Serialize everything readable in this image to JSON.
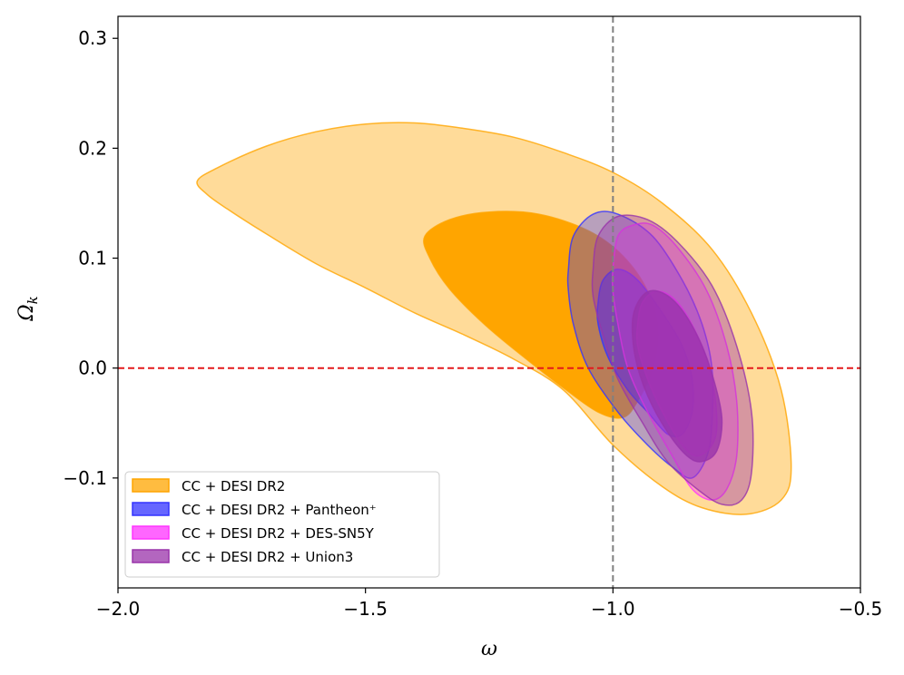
{
  "chart_data": {
    "type": "contour",
    "xlabel": "ω",
    "ylabel": "Ω",
    "ylabel_sub": "k",
    "xlim": [
      -2.0,
      -0.5
    ],
    "ylim": [
      -0.2,
      0.32
    ],
    "xticks": [
      {
        "value": -2.0,
        "label": "−2.0"
      },
      {
        "value": -1.5,
        "label": "−1.5"
      },
      {
        "value": -1.0,
        "label": "−1.0"
      },
      {
        "value": -0.5,
        "label": "−0.5"
      }
    ],
    "yticks": [
      {
        "value": 0.3,
        "label": "0.3"
      },
      {
        "value": 0.2,
        "label": "0.2"
      },
      {
        "value": 0.1,
        "label": "0.1"
      },
      {
        "value": 0.0,
        "label": "0.0"
      },
      {
        "value": -0.1,
        "label": "−0.1"
      }
    ],
    "reference_lines": [
      {
        "orientation": "vertical",
        "value": -1.0,
        "color": "#808080",
        "style": "dashed"
      },
      {
        "orientation": "horizontal",
        "value": 0.0,
        "color": "#e41a1c",
        "style": "dashed"
      }
    ],
    "series": [
      {
        "name": "CC + DESI DR2",
        "color": "#FFA500",
        "contours": [
          {
            "level": "2sigma",
            "opacity": 0.4,
            "points": [
              [
                -1.84,
                0.17
              ],
              [
                -1.8,
                0.182
              ],
              [
                -1.7,
                0.202
              ],
              [
                -1.6,
                0.215
              ],
              [
                -1.5,
                0.222
              ],
              [
                -1.4,
                0.223
              ],
              [
                -1.3,
                0.218
              ],
              [
                -1.2,
                0.21
              ],
              [
                -1.1,
                0.196
              ],
              [
                -1.0,
                0.178
              ],
              [
                -0.9,
                0.15
              ],
              [
                -0.8,
                0.108
              ],
              [
                -0.72,
                0.05
              ],
              [
                -0.66,
                -0.02
              ],
              [
                -0.64,
                -0.09
              ],
              [
                -0.66,
                -0.12
              ],
              [
                -0.73,
                -0.133
              ],
              [
                -0.82,
                -0.127
              ],
              [
                -0.9,
                -0.108
              ],
              [
                -1.0,
                -0.07
              ],
              [
                -1.1,
                -0.02
              ],
              [
                -1.2,
                0.008
              ],
              [
                -1.3,
                0.03
              ],
              [
                -1.4,
                0.05
              ],
              [
                -1.5,
                0.073
              ],
              [
                -1.6,
                0.095
              ],
              [
                -1.7,
                0.122
              ],
              [
                -1.78,
                0.145
              ],
              [
                -1.82,
                0.158
              ]
            ]
          },
          {
            "level": "1sigma",
            "opacity": 1.0,
            "points": [
              [
                -1.38,
                0.12
              ],
              [
                -1.33,
                0.135
              ],
              [
                -1.25,
                0.142
              ],
              [
                -1.15,
                0.14
              ],
              [
                -1.05,
                0.125
              ],
              [
                -0.98,
                0.102
              ],
              [
                -0.93,
                0.07
              ],
              [
                -0.91,
                0.035
              ],
              [
                -0.92,
                0.0
              ],
              [
                -0.95,
                -0.03
              ],
              [
                -0.98,
                -0.045
              ],
              [
                -1.03,
                -0.04
              ],
              [
                -1.1,
                -0.018
              ],
              [
                -1.18,
                0.01
              ],
              [
                -1.26,
                0.04
              ],
              [
                -1.33,
                0.072
              ],
              [
                -1.37,
                0.1
              ]
            ]
          }
        ]
      },
      {
        "name": "CC + DESI DR2 + Pantheon⁺",
        "color": "#3333ff",
        "contours": [
          {
            "level": "2sigma",
            "opacity": 0.35,
            "points": [
              [
                -1.09,
                0.09
              ],
              [
                -1.08,
                0.12
              ],
              [
                -1.04,
                0.14
              ],
              [
                -0.99,
                0.14
              ],
              [
                -0.92,
                0.12
              ],
              [
                -0.86,
                0.08
              ],
              [
                -0.82,
                0.04
              ],
              [
                -0.8,
                0.0
              ],
              [
                -0.8,
                -0.05
              ],
              [
                -0.81,
                -0.08
              ],
              [
                -0.84,
                -0.1
              ],
              [
                -0.88,
                -0.09
              ],
              [
                -0.93,
                -0.07
              ],
              [
                -0.99,
                -0.04
              ],
              [
                -1.05,
                0.0
              ],
              [
                -1.08,
                0.04
              ],
              [
                -1.09,
                0.07
              ]
            ]
          },
          {
            "level": "1sigma",
            "opacity": 0.55,
            "points": [
              [
                -1.03,
                0.06
              ],
              [
                -1.02,
                0.08
              ],
              [
                -0.99,
                0.09
              ],
              [
                -0.95,
                0.08
              ],
              [
                -0.9,
                0.05
              ],
              [
                -0.86,
                0.02
              ],
              [
                -0.84,
                -0.01
              ],
              [
                -0.84,
                -0.04
              ],
              [
                -0.86,
                -0.06
              ],
              [
                -0.89,
                -0.06
              ],
              [
                -0.93,
                -0.04
              ],
              [
                -0.97,
                -0.02
              ],
              [
                -1.01,
                0.01
              ],
              [
                -1.03,
                0.04
              ]
            ]
          }
        ]
      },
      {
        "name": "CC + DESI DR2 + DES-SN5Y",
        "color": "#ff33ff",
        "contours": [
          {
            "level": "2sigma",
            "opacity": 0.35,
            "points": [
              [
                -1.0,
                0.09
              ],
              [
                -0.99,
                0.12
              ],
              [
                -0.96,
                0.13
              ],
              [
                -0.92,
                0.13
              ],
              [
                -0.87,
                0.11
              ],
              [
                -0.81,
                0.07
              ],
              [
                -0.77,
                0.02
              ],
              [
                -0.75,
                -0.03
              ],
              [
                -0.75,
                -0.08
              ],
              [
                -0.77,
                -0.11
              ],
              [
                -0.8,
                -0.12
              ],
              [
                -0.84,
                -0.11
              ],
              [
                -0.88,
                -0.08
              ],
              [
                -0.93,
                -0.04
              ],
              [
                -0.97,
                0.0
              ],
              [
                -0.99,
                0.04
              ],
              [
                -1.0,
                0.07
              ]
            ]
          },
          {
            "level": "1sigma",
            "opacity": 0.55,
            "points": [
              [
                -0.95,
                0.04
              ],
              [
                -0.94,
                0.06
              ],
              [
                -0.91,
                0.07
              ],
              [
                -0.87,
                0.06
              ],
              [
                -0.83,
                0.03
              ],
              [
                -0.8,
                -0.01
              ],
              [
                -0.79,
                -0.05
              ],
              [
                -0.8,
                -0.07
              ],
              [
                -0.83,
                -0.08
              ],
              [
                -0.86,
                -0.07
              ],
              [
                -0.9,
                -0.04
              ],
              [
                -0.93,
                -0.01
              ],
              [
                -0.95,
                0.02
              ]
            ]
          }
        ]
      },
      {
        "name": "CC + DESI DR2 + Union3",
        "color": "#9933aa",
        "contours": [
          {
            "level": "2sigma",
            "opacity": 0.4,
            "points": [
              [
                -1.04,
                0.09
              ],
              [
                -1.03,
                0.12
              ],
              [
                -0.99,
                0.138
              ],
              [
                -0.93,
                0.135
              ],
              [
                -0.87,
                0.115
              ],
              [
                -0.8,
                0.075
              ],
              [
                -0.75,
                0.02
              ],
              [
                -0.72,
                -0.04
              ],
              [
                -0.72,
                -0.095
              ],
              [
                -0.74,
                -0.12
              ],
              [
                -0.78,
                -0.124
              ],
              [
                -0.83,
                -0.11
              ],
              [
                -0.89,
                -0.085
              ],
              [
                -0.94,
                -0.05
              ],
              [
                -0.99,
                -0.01
              ],
              [
                -1.02,
                0.03
              ],
              [
                -1.04,
                0.065
              ]
            ]
          },
          {
            "level": "1sigma",
            "opacity": 0.8,
            "points": [
              [
                -0.96,
                0.045
              ],
              [
                -0.94,
                0.066
              ],
              [
                -0.91,
                0.07
              ],
              [
                -0.87,
                0.058
              ],
              [
                -0.83,
                0.03
              ],
              [
                -0.8,
                -0.005
              ],
              [
                -0.78,
                -0.045
              ],
              [
                -0.79,
                -0.075
              ],
              [
                -0.82,
                -0.085
              ],
              [
                -0.85,
                -0.08
              ],
              [
                -0.89,
                -0.058
              ],
              [
                -0.93,
                -0.025
              ],
              [
                -0.955,
                0.01
              ]
            ]
          }
        ]
      }
    ],
    "legend": {
      "placement": "lower-left",
      "entries": [
        {
          "label": "CC + DESI DR2",
          "fill": "#FFA500",
          "edge": "#FFA500"
        },
        {
          "label": "CC + DESI DR2 + Pantheon⁺",
          "fill": "#3333ff",
          "edge": "#3333ff"
        },
        {
          "label": "CC + DESI DR2 + DES-SN5Y",
          "fill": "#ff33ff",
          "edge": "#ff33ff"
        },
        {
          "label": "CC + DESI DR2 + Union3",
          "fill": "#9933aa",
          "edge": "#9933aa"
        }
      ]
    }
  }
}
